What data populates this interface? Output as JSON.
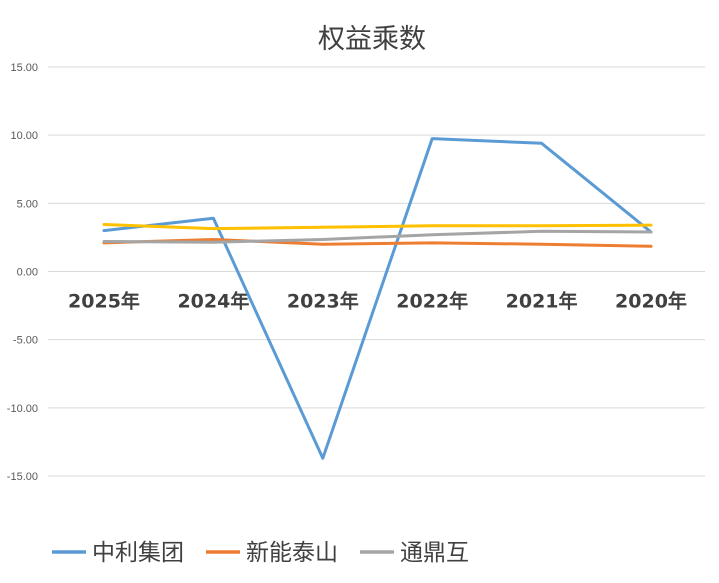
{
  "chart_data": {
    "type": "line",
    "title": "权益乘数",
    "categories": [
      "2025年",
      "2024年",
      "2023年",
      "2022年",
      "2021年",
      "2020年"
    ],
    "y_ticks": [
      "15.00",
      "10.00",
      "5.00",
      "0.00",
      "-5.00",
      "-10.00",
      "-15.00"
    ],
    "ylim": [
      -15,
      15
    ],
    "grid": true,
    "legend_position": "bottom",
    "series": [
      {
        "name": "中利集团",
        "color": "#5b9bd5",
        "values": [
          3.0,
          3.9,
          -13.7,
          9.75,
          9.4,
          2.9
        ]
      },
      {
        "name": "新能泰山",
        "color": "#ed7d31",
        "values": [
          2.1,
          2.35,
          2.0,
          2.1,
          2.0,
          1.85
        ]
      },
      {
        "name": "通鼎互联",
        "color": "#a5a5a5",
        "values": [
          2.2,
          2.15,
          2.35,
          2.7,
          2.95,
          2.9
        ]
      },
      {
        "name": "",
        "color": "#ffc000",
        "values": [
          3.45,
          3.15,
          3.25,
          3.35,
          3.35,
          3.4
        ]
      }
    ],
    "legend_visible": [
      "中利集团",
      "新能泰山",
      "通鼎互"
    ]
  }
}
